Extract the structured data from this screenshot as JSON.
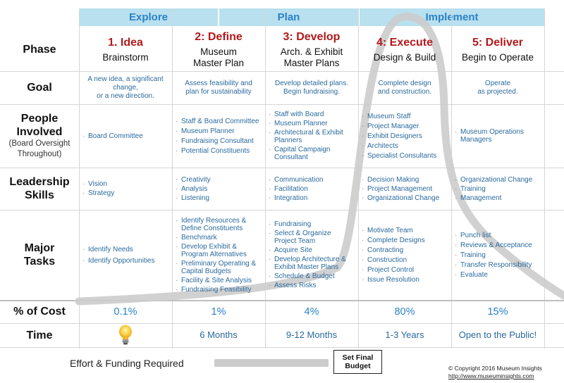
{
  "stages": [
    "Explore",
    "Plan",
    "Implement"
  ],
  "row_labels": {
    "phase": "Phase",
    "goal": "Goal",
    "people_line1": "People",
    "people_line2": "Involved",
    "people_sub1": "(Board Oversight",
    "people_sub2": "Throughout)",
    "leadership_line1": "Leadership",
    "leadership_line2": "Skills",
    "tasks_line1": "Major",
    "tasks_line2": "Tasks",
    "cost": "% of Cost",
    "time": "Time"
  },
  "phases": [
    {
      "number": "1. Idea",
      "name_line1": "Brainstorm",
      "name_line2": "",
      "goal": [
        "A new idea, a significant",
        "change,",
        "or a new direction."
      ],
      "people": [
        "Board Committee"
      ],
      "skills": [
        "Vision",
        "Strategy"
      ],
      "tasks": [
        "Identify Needs",
        "Identify Opportunities"
      ],
      "cost": "0.1%",
      "time": ""
    },
    {
      "number": "2: Define",
      "name_line1": "Museum",
      "name_line2": "Master Plan",
      "goal": [
        "Assess feasibility and",
        "plan for sustainability"
      ],
      "people": [
        "Staff & Board Committee",
        "Museum Planner",
        "Fundraising Consultant",
        "Potential Constituents"
      ],
      "skills": [
        "Creativity",
        "Analysis",
        "Listening"
      ],
      "tasks": [
        "Identify Resources & Define Constituents",
        "Benchmark",
        "Develop Exhibit & Program Alternatives",
        "Preliminary Operating & Capital Budgets",
        "Facility & Site Analysis",
        "Fundraising Feasibility"
      ],
      "cost": "1%",
      "time": "6 Months"
    },
    {
      "number": "3: Develop",
      "name_line1": "Arch. & Exhibit",
      "name_line2": "Master Plans",
      "goal": [
        "Develop detailed plans.",
        "Begin fundraising."
      ],
      "people": [
        "Staff with Board",
        "Museum Planner",
        "Architectural & Exhibit Planners",
        "Capital Campaign Consultant"
      ],
      "skills": [
        "Communication",
        "Facilitation",
        "Integration"
      ],
      "tasks": [
        "Fundraising",
        "Select & Organize Project Team",
        "Acquire Site",
        "Develop Architecture & Exhibit Master Plans",
        "Schedule & Budget",
        "Assess Risks"
      ],
      "cost": "4%",
      "time": "9-12 Months"
    },
    {
      "number": "4: Execute",
      "name_line1": "Design & Build",
      "name_line2": "",
      "goal": [
        "Complete design",
        "and construction."
      ],
      "people": [
        "Museum Staff",
        "Project Manager",
        "Exhibit Designers",
        "Architects",
        "Specialist Consultants"
      ],
      "skills": [
        "Decision Making",
        "Project Management",
        "Organizational Change"
      ],
      "tasks": [
        "Motivate Team",
        "Complete Designs",
        "Contracting",
        "Construction",
        "Project Control",
        "Issue Resolution"
      ],
      "cost": "80%",
      "time": "1-3 Years"
    },
    {
      "number": "5: Deliver",
      "name_line1": "Begin to Operate",
      "name_line2": "",
      "goal": [
        "Operate",
        "as projected."
      ],
      "people": [
        "Museum Operations Managers"
      ],
      "skills": [
        "Organizational Change",
        "Training",
        "Management"
      ],
      "tasks": [
        "Punch list",
        "Reviews & Acceptance",
        "Training",
        "Transfer Responsibility",
        "Evaluate"
      ],
      "cost": "15%",
      "time": "Open to the Public!"
    }
  ],
  "legend": {
    "effort_label": "Effort & Funding Required",
    "budget_line1": "Set Final",
    "budget_line2": "Budget"
  },
  "copyright": {
    "line1": "© Copyright 2016 Museum Insights",
    "url": "http://www.museuminsights.com"
  },
  "icons": {
    "idea_time": "lightbulb-icon"
  },
  "colors": {
    "stage_bg": "#b9e0ee",
    "stage_text": "#2a82c9",
    "phase_number": "#b3191b",
    "cell_text": "#2a6a9e",
    "curve": "#cccccc"
  }
}
